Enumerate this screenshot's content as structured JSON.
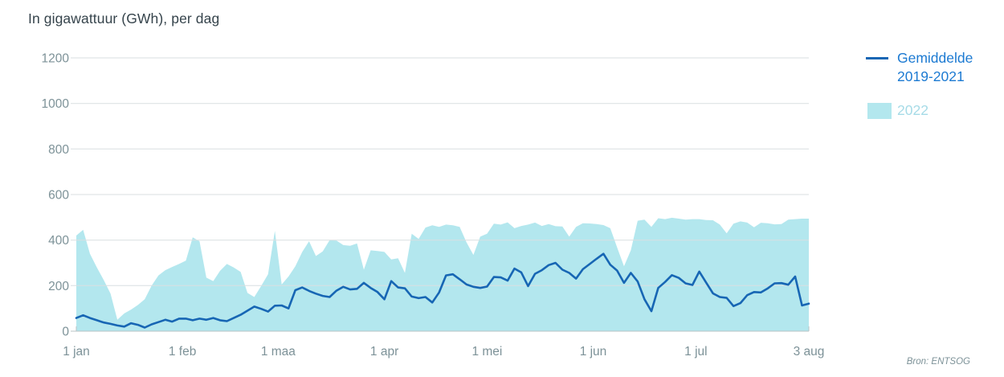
{
  "title": "In gigawattuur (GWh), per dag",
  "source": "Bron: ENTSOG",
  "legend": {
    "line_label": "Gemiddelde 2019-2021",
    "area_label": "2022"
  },
  "colors": {
    "line": "#1766b4",
    "area": "#b3e7ee",
    "legend_line_text": "#1c7ad2",
    "legend_area_text": "#a6dbe7",
    "axis_text": "#7d9298",
    "gridline": "#d9dfe1",
    "axis_line": "#b9c3c6",
    "title_text": "#36444c"
  },
  "chart_data": {
    "type": "area",
    "title": "In gigawattuur (GWh), per dag",
    "xlabel": "",
    "ylabel": "",
    "ylim": [
      0,
      1200
    ],
    "yticks": [
      0,
      200,
      400,
      600,
      800,
      1000,
      1200
    ],
    "grid": true,
    "legend_position": "right",
    "x_unit": "days since 1 jan 2022",
    "x_days_start": 0,
    "x_days_step": 2,
    "x_range_days": [
      0,
      214
    ],
    "xticks": [
      {
        "label": "1 jan",
        "day": 0
      },
      {
        "label": "1 feb",
        "day": 31
      },
      {
        "label": "1 maa",
        "day": 59
      },
      {
        "label": "1 apr",
        "day": 90
      },
      {
        "label": "1 mei",
        "day": 120
      },
      {
        "label": "1 jun",
        "day": 151
      },
      {
        "label": "1 jul",
        "day": 181
      },
      {
        "label": "3 aug",
        "day": 214
      }
    ],
    "series": [
      {
        "name": "2022",
        "type": "area",
        "color": "#b3e7ee",
        "values": [
          420,
          445,
          340,
          280,
          225,
          165,
          50,
          78,
          95,
          115,
          140,
          200,
          245,
          268,
          282,
          295,
          310,
          412,
          395,
          235,
          220,
          265,
          295,
          280,
          260,
          168,
          150,
          198,
          250,
          440,
          205,
          240,
          285,
          348,
          395,
          330,
          350,
          400,
          398,
          378,
          375,
          385,
          270,
          355,
          352,
          348,
          315,
          320,
          256,
          428,
          405,
          455,
          465,
          458,
          468,
          465,
          458,
          390,
          335,
          415,
          428,
          472,
          468,
          478,
          452,
          462,
          468,
          477,
          462,
          470,
          461,
          460,
          415,
          458,
          474,
          473,
          470,
          466,
          452,
          368,
          285,
          355,
          485,
          490,
          458,
          496,
          492,
          498,
          494,
          490,
          492,
          492,
          488,
          487,
          468,
          430,
          472,
          482,
          477,
          456,
          476,
          474,
          469,
          470,
          490,
          492,
          494,
          494
        ]
      },
      {
        "name": "Gemiddelde 2019-2021",
        "type": "line",
        "color": "#1766b4",
        "values": [
          58,
          70,
          58,
          48,
          38,
          32,
          25,
          20,
          35,
          28,
          16,
          30,
          40,
          50,
          42,
          55,
          55,
          48,
          55,
          50,
          58,
          48,
          44,
          58,
          72,
          90,
          108,
          98,
          86,
          112,
          113,
          100,
          180,
          192,
          177,
          165,
          155,
          150,
          178,
          195,
          183,
          186,
          212,
          190,
          172,
          140,
          220,
          192,
          188,
          152,
          145,
          150,
          126,
          170,
          245,
          250,
          228,
          205,
          195,
          190,
          196,
          238,
          236,
          222,
          275,
          258,
          198,
          252,
          268,
          290,
          300,
          270,
          256,
          231,
          272,
          295,
          318,
          340,
          292,
          266,
          212,
          256,
          218,
          140,
          88,
          190,
          216,
          246,
          234,
          210,
          203,
          262,
          214,
          166,
          150,
          146,
          110,
          123,
          158,
          172,
          170,
          188,
          210,
          211,
          204,
          240,
          113,
          121
        ]
      }
    ]
  }
}
